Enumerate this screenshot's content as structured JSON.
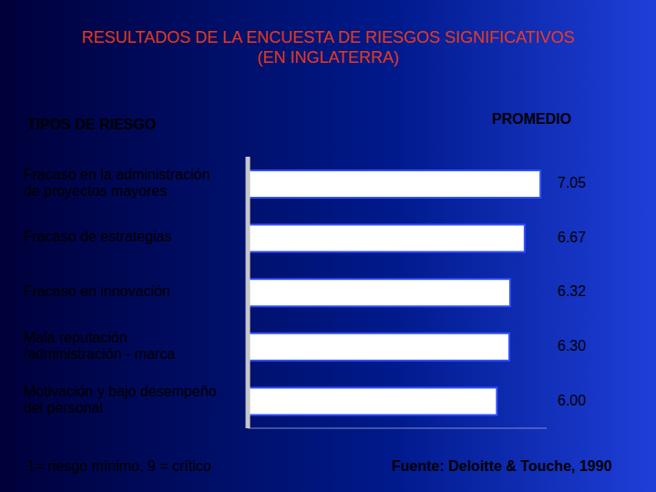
{
  "chart_data": {
    "type": "bar",
    "title": "RESULTADOS DE LA ENCUESTA DE RIESGOS SIGNIFICATIVOS\n(EN INGLATERRA)",
    "y_label": "TIPOS DE RIESGO",
    "x_label": "PROMEDIO",
    "categories": [
      "Fracaso en la administración de proyectos mayores",
      "Fracaso de estrategias",
      "Fracaso en innovación",
      "Mala reputación /administración - marca",
      "Motivación y bajo desempeño del personal"
    ],
    "values": [
      7.05,
      6.67,
      6.32,
      6.3,
      6.0
    ],
    "value_labels": [
      "7.05",
      "6.67",
      "6.32",
      "6.30",
      "6.00"
    ],
    "color": "#ffffff",
    "orientation": "horizontal",
    "data_labels": true,
    "tick_labels": "y",
    "grid": false,
    "xlim": [
      0,
      7.2
    ],
    "annotations": [
      "1= riesgo mínimo, 9 = crítico",
      "Fuente: Deloitte & Touche, 1990"
    ]
  }
}
